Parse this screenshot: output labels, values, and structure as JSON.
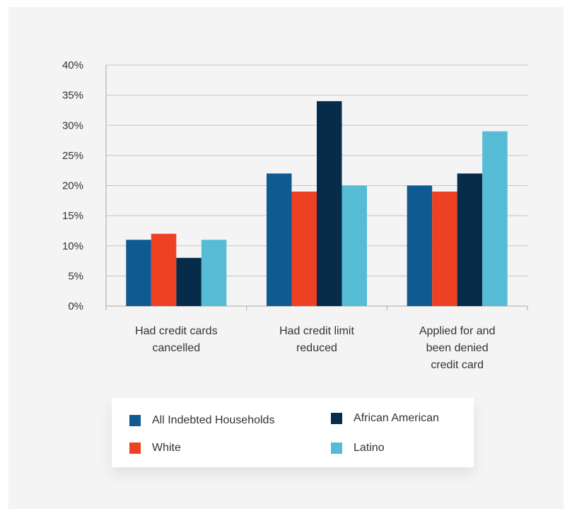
{
  "chart_data": {
    "type": "bar",
    "categories": [
      [
        "Had credit cards",
        "cancelled"
      ],
      [
        "Had credit limit",
        "reduced"
      ],
      [
        "Applied for and",
        "been denied",
        "credit card"
      ]
    ],
    "series": [
      {
        "name": "All Indebted Households",
        "color": "#0f5a91",
        "values": [
          11,
          22,
          20
        ]
      },
      {
        "name": "White",
        "color": "#ee4124",
        "values": [
          12,
          19,
          19
        ]
      },
      {
        "name": "African American",
        "color": "#072c4a",
        "values": [
          8,
          34,
          22
        ]
      },
      {
        "name": "Latino",
        "color": "#56bcd5",
        "values": [
          11,
          20,
          29
        ]
      }
    ],
    "ylim": [
      0,
      40
    ],
    "yticks": [
      0,
      5,
      10,
      15,
      20,
      25,
      30,
      35,
      40
    ],
    "ytick_labels": [
      "0%",
      "5%",
      "10%",
      "15%",
      "20%",
      "25%",
      "30%",
      "35%",
      "40%"
    ],
    "grid": true,
    "legend_position": "bottom"
  }
}
